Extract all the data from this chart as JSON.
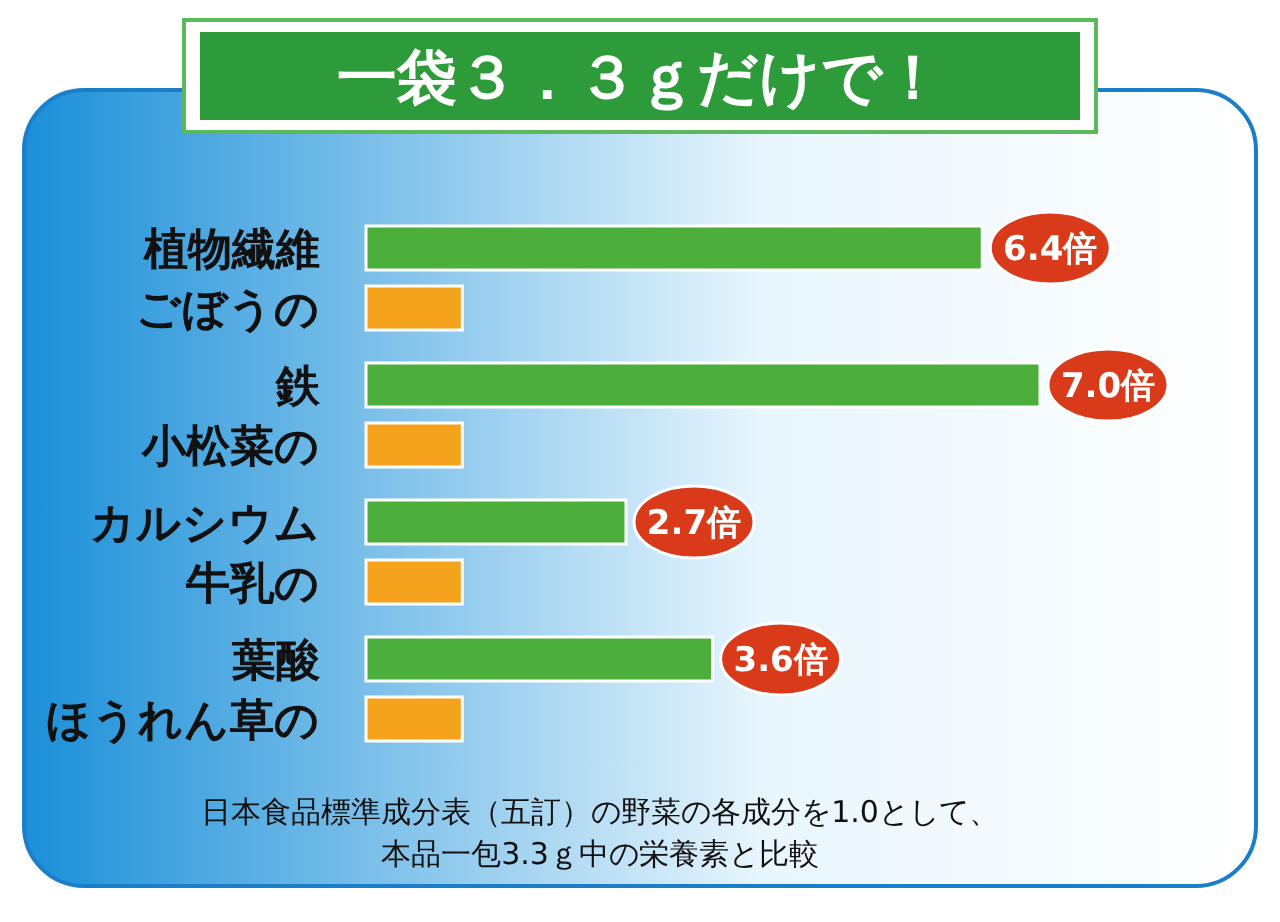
{
  "chart_data": {
    "type": "bar",
    "orientation": "horizontal",
    "title": "一袋３．３ｇだけで！",
    "categories": [
      "植物繊維",
      "ごぼうの",
      "鉄",
      "小松菜の",
      "カルシウム",
      "牛乳の",
      "葉酸",
      "ほうれん草の"
    ],
    "values": [
      6.4,
      1.0,
      7.0,
      1.0,
      2.7,
      1.0,
      3.6,
      1.0
    ],
    "colors": [
      "#4caf3c",
      "#f5a21c",
      "#4caf3c",
      "#f5a21c",
      "#4caf3c",
      "#f5a21c",
      "#4caf3c",
      "#f5a21c"
    ],
    "value_labels": [
      "6.4倍",
      null,
      "7.0倍",
      null,
      "2.7倍",
      null,
      "3.6倍",
      null
    ],
    "annotations": [
      "日本食品標準成分表（五訂）の野菜の各成分を1.0として、",
      "本品一包3.3ｇ中の栄養素と比較"
    ]
  }
}
